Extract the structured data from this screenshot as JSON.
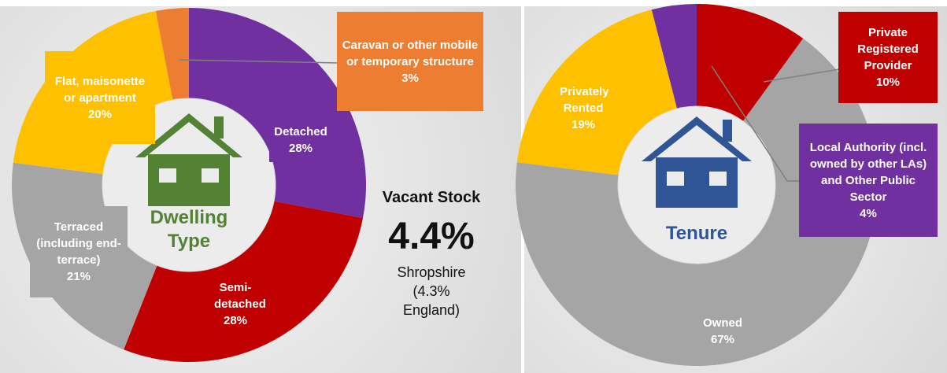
{
  "chart_data": [
    {
      "type": "pie",
      "center_label": "Dwelling Type",
      "categories": [
        "Detached",
        "Semi-detached",
        "Terraced (including end-terrace)",
        "Flat, maisonette or apartment",
        "Caravan or other mobile or temporary structure"
      ],
      "values": [
        28,
        28,
        21,
        20,
        3
      ],
      "value_labels": [
        "28%",
        "28%",
        "21%",
        "20%",
        "3%"
      ],
      "colors": [
        "#7030a0",
        "#c00000",
        "#a5a5a5",
        "#ffc000",
        "#ed7d31"
      ],
      "center_color": "#548235"
    },
    {
      "type": "pie",
      "center_label": "Tenure",
      "categories": [
        "Private Registered Provider",
        "Owned",
        "Privately Rented",
        "Local Authority (incl. owned by other LAs) and Other Public Sector"
      ],
      "values": [
        10,
        67,
        19,
        4
      ],
      "value_labels": [
        "10%",
        "67%",
        "19%",
        "4%"
      ],
      "colors": [
        "#c00000",
        "#a5a5a5",
        "#ffc000",
        "#7030a0"
      ],
      "center_color": "#2f5597"
    }
  ],
  "vacant_stock": {
    "title": "Vacant Stock",
    "value": "4.4%",
    "note": "Shropshire (4.3% England)"
  }
}
